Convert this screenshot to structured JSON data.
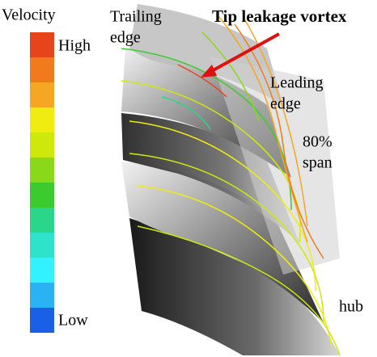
{
  "legend": {
    "title": "Velocity",
    "high": "High",
    "low": "Low",
    "colors": [
      "#e8441c",
      "#f07a1c",
      "#f5a623",
      "#f0ec10",
      "#cfe80c",
      "#8ad81a",
      "#3ccb2e",
      "#2ad68a",
      "#2ee2cc",
      "#33f2ff",
      "#2ab2f4",
      "#1a60e6"
    ]
  },
  "annotations": {
    "trailing_edge": [
      "Trailing",
      "edge"
    ],
    "tip_leakage_vortex": "Tip leakage vortex",
    "leading_edge": [
      "Leading",
      "edge"
    ],
    "span": [
      "80%",
      "span"
    ],
    "hub": "hub"
  }
}
